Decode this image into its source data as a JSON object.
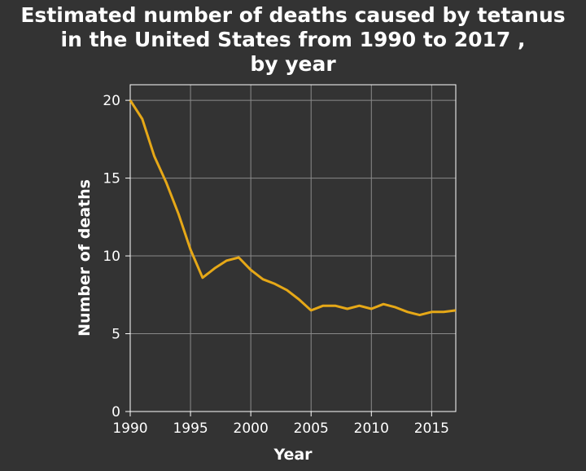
{
  "chart_data": {
    "type": "line",
    "title_lines": [
      "Estimated number of deaths caused by tetanus",
      "in the United States from 1990 to 2017 ,",
      "by year"
    ],
    "xlabel": "Year",
    "ylabel": "Number of deaths",
    "xlim": [
      1990,
      2017
    ],
    "ylim": [
      0,
      21
    ],
    "x_ticks": [
      1990,
      1995,
      2000,
      2005,
      2010,
      2015
    ],
    "x_tick_labels": [
      "1990",
      "1995",
      "2000",
      "2005",
      "2010",
      "2015"
    ],
    "y_ticks": [
      0,
      5,
      10,
      15,
      20
    ],
    "y_tick_labels": [
      "0",
      "5",
      "10",
      "15",
      "20"
    ],
    "grid": true,
    "line_color": "#E6A817",
    "background_color": "#333333",
    "series": [
      {
        "x": [
          1990,
          1991,
          1992,
          1993,
          1994,
          1995,
          1996,
          1997,
          1998,
          1999,
          2000,
          2001,
          2002,
          2003,
          2004,
          2005,
          2006,
          2007,
          2008,
          2009,
          2010,
          2011,
          2012,
          2013,
          2014,
          2015,
          2016,
          2017
        ],
        "values": [
          20.0,
          18.8,
          16.4,
          14.7,
          12.7,
          10.4,
          8.6,
          9.2,
          9.7,
          9.9,
          9.1,
          8.5,
          8.2,
          7.8,
          7.2,
          6.5,
          6.8,
          6.8,
          6.6,
          6.8,
          6.6,
          6.9,
          6.7,
          6.4,
          6.2,
          6.4,
          6.4,
          6.5
        ]
      }
    ]
  }
}
